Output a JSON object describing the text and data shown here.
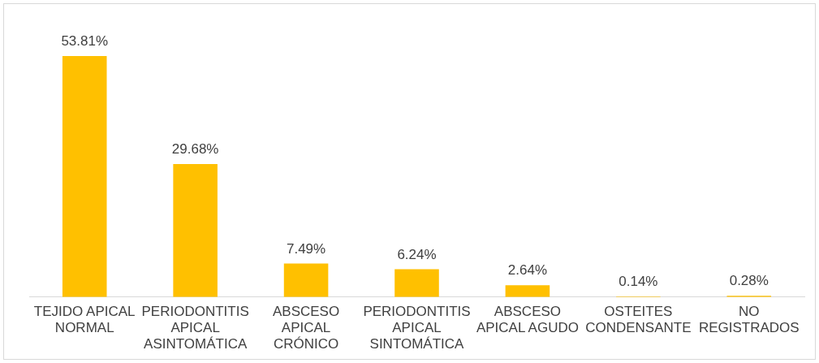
{
  "chart_data": {
    "type": "bar",
    "categories": [
      "TEJIDO APICAL NORMAL",
      "PERIODONTITIS APICAL ASINTOMÁTICA",
      "ABSCESO APICAL CRÓNICO",
      "PERIODONTITIS APICAL SINTOMÁTICA",
      "ABSCESO APICAL AGUDO",
      "OSTEITES CONDENSANTE",
      "NO REGISTRADOS"
    ],
    "values": [
      53.81,
      29.68,
      7.49,
      6.24,
      2.64,
      0.14,
      0.28
    ],
    "value_labels": [
      "53.81%",
      "29.68%",
      "7.49%",
      "6.24%",
      "2.64%",
      "0.14%",
      "0.28%"
    ],
    "color": "#ffc000",
    "grid": false,
    "legend": false
  }
}
